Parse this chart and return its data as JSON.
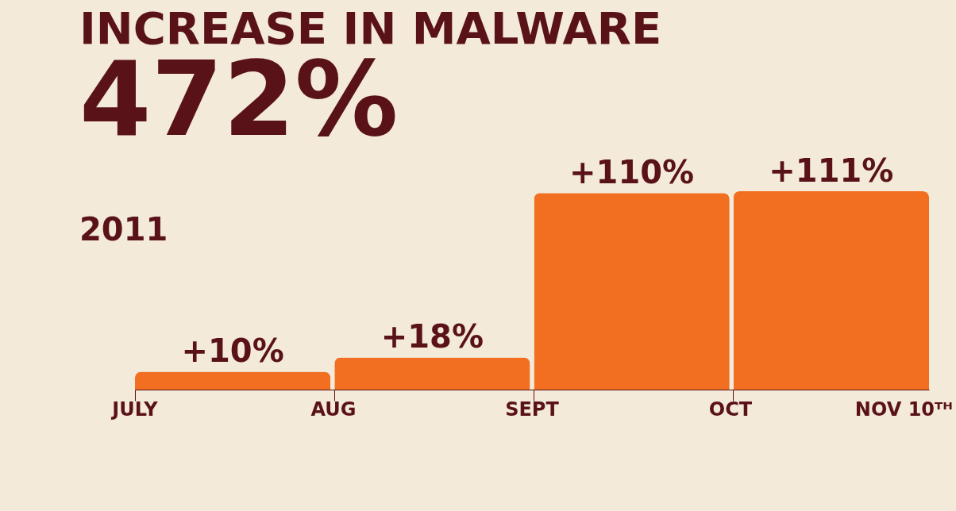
{
  "chart_data": {
    "type": "bar",
    "title": "INCREASE IN MALWARE",
    "subtitle": "472%",
    "annotations": [
      "2011",
      "JULY",
      "AUG",
      "SEPT",
      "OCT",
      "NOV 10ᵀᴴ"
    ],
    "categories": [
      null,
      null,
      null,
      null
    ],
    "values": [
      10,
      18,
      110,
      111
    ],
    "value_labels": [
      "+10%",
      "+18%",
      "+110%",
      "+111%"
    ],
    "color": "#f26f21"
  }
}
